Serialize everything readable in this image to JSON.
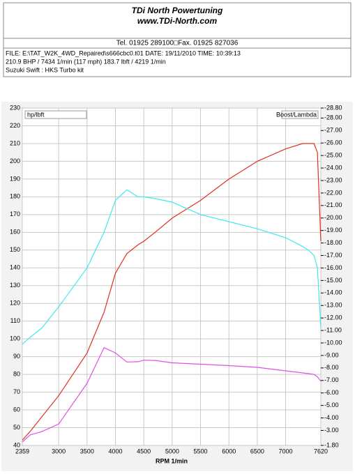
{
  "header": {
    "title": "TDi North Powertuning",
    "website": "www.TDi-North.com",
    "contact": "Tel. 01925 289100□Fax. 01925 827036"
  },
  "info": {
    "lines": [
      "FILE: E:\\TAT_W2K_4WD_Repaired\\s666cbc0.t01  DATE: 19/11/2010  TIME: 10:39:13",
      "210.9 BHP / 7434 1/min (117 mph)     183.7 lbft / 4219 1/min",
      "Suzuki Swift : HKS Turbo kit"
    ]
  },
  "chart_data": {
    "type": "line",
    "x_label": "RPM 1/min",
    "y_label": "hp/lbft",
    "y2_label": "Boost/Lambda",
    "x": [
      2359,
      2500,
      2700,
      3000,
      3500,
      3800,
      4000,
      4200,
      4400,
      4500,
      4700,
      5000,
      5500,
      6000,
      6500,
      7000,
      7300,
      7400,
      7500,
      7560,
      7620
    ],
    "series": [
      {
        "color": "#e03020",
        "values": [
          43,
          48,
          56,
          68,
          92,
          115,
          137,
          148,
          153,
          155,
          160,
          168,
          178,
          190,
          200,
          207,
          210,
          210,
          210,
          205,
          155
        ]
      },
      {
        "color": "#40e8f0",
        "values": [
          97,
          101,
          106,
          118,
          140,
          160,
          178,
          184,
          180,
          180,
          179,
          177,
          170,
          166,
          162,
          157,
          152,
          150,
          147,
          140,
          106
        ]
      },
      {
        "color": "#e050e8",
        "values": [
          -2.08,
          -2.65,
          -2.9,
          -3.51,
          -6.77,
          -9.62,
          -9.2,
          -8.48,
          -8.5,
          -8.62,
          -8.6,
          -8.41,
          -8.3,
          -8.19,
          -8.05,
          -7.77,
          -7.6,
          -7.55,
          -7.48,
          -7.3,
          -6.92
        ],
        "axis": "y2"
      }
    ],
    "xlim": [
      2359,
      7620
    ],
    "xticks": [
      2359,
      3000,
      3500,
      4000,
      4500,
      5000,
      5500,
      6000,
      6500,
      7000,
      7620
    ],
    "ylim": [
      40,
      230
    ],
    "yticks": [
      40,
      50,
      60,
      70,
      80,
      90,
      100,
      110,
      120,
      130,
      140,
      150,
      160,
      170,
      180,
      190,
      200,
      210,
      220,
      230
    ],
    "y2lim": [
      -1.8,
      -28.8
    ],
    "y2ticks": [
      {
        "value": -1.8,
        "label": "-1.80"
      },
      {
        "value": -3,
        "label": "-3.00"
      },
      {
        "value": -4,
        "label": "-4.00"
      },
      {
        "value": -5,
        "label": "-5.00"
      },
      {
        "value": -6,
        "label": "-6.00"
      },
      {
        "value": -7,
        "label": "-7.00"
      },
      {
        "value": -8,
        "label": "-8.00"
      },
      {
        "value": -9,
        "label": "-9.00"
      },
      {
        "value": -10,
        "label": "-10.00"
      },
      {
        "value": -11,
        "label": "-11.00"
      },
      {
        "value": -12,
        "label": "-12.00"
      },
      {
        "value": -13,
        "label": "-13.00"
      },
      {
        "value": -14,
        "label": "-14.00"
      },
      {
        "value": -15,
        "label": "-15.00"
      },
      {
        "value": -16,
        "label": "-16.00"
      },
      {
        "value": -17,
        "label": "-17.00"
      },
      {
        "value": -18,
        "label": "-18.00"
      },
      {
        "value": -19,
        "label": "-19.00"
      },
      {
        "value": -20,
        "label": "-20.00"
      },
      {
        "value": -21,
        "label": "-21.00"
      },
      {
        "value": -22,
        "label": "-22.00"
      },
      {
        "value": -23,
        "label": "-23.00"
      },
      {
        "value": -24,
        "label": "-24.00"
      },
      {
        "value": -25,
        "label": "-25.00"
      },
      {
        "value": -26,
        "label": "-26.00"
      },
      {
        "value": -27,
        "label": "-27.00"
      },
      {
        "value": -28,
        "label": "-28.00"
      },
      {
        "value": -28.8,
        "label": "-28.80"
      }
    ],
    "grid": true
  }
}
